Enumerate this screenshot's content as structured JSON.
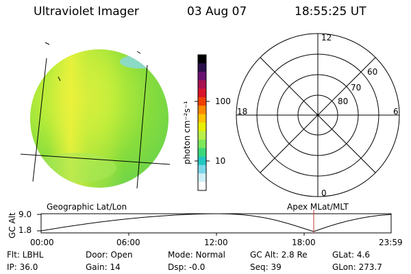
{
  "header": {
    "instrument": "Ultraviolet Imager",
    "date": "03 Aug 07",
    "time": "18:55:25 UT"
  },
  "colorbar": {
    "unit_label": "photon cm⁻²s⁻¹",
    "ticks": [
      "100",
      "10"
    ],
    "colors": [
      "#000000",
      "#2b0f4a",
      "#6a1270",
      "#a81150",
      "#d8142a",
      "#f04000",
      "#ff8a00",
      "#ffc400",
      "#e6f000",
      "#b8f048",
      "#7ce85a",
      "#3cd87a",
      "#22c8c0",
      "#7ad8e8",
      "#d0f0f8",
      "#ffffff"
    ]
  },
  "polar_plot": {
    "lat_labels": [
      "60",
      "70",
      "80"
    ],
    "mlt_labels": {
      "top": "12",
      "left": "18",
      "right": "6",
      "bottom": "0"
    }
  },
  "orbit_panel": {
    "ylabel": "GC Alt",
    "y_ticks": [
      "9.0",
      "1.8"
    ],
    "left_title": "Geographic Lat/Lon",
    "right_title": "Apex MLat/MLT",
    "x_ticks": [
      "00:00",
      "06:00",
      "12:00",
      "18:00",
      "23:59"
    ],
    "marker_color": "#c0392b"
  },
  "status": {
    "row1": [
      "Flt: LBHL",
      "Door: Open",
      "Mode: Normal",
      "GC Alt: 2.8 Re",
      "GLat:   4.6"
    ],
    "row2": [
      "IP: 36.0",
      "Gain: 14",
      "Dsp:   -0.0",
      "Seq: 39",
      "GLon: 273.7"
    ]
  },
  "colors": {
    "earth_green": "#7edc3a",
    "earth_yellow": "#d4f03a",
    "limb_cyan": "#8ad8e8"
  }
}
